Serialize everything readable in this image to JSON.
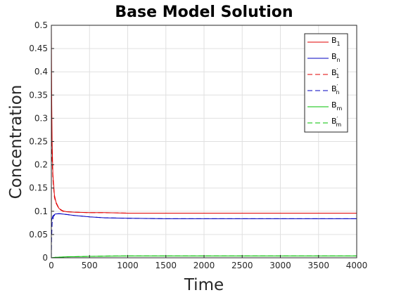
{
  "chart_data": {
    "type": "line",
    "title": "Base Model Solution",
    "xlabel": "Time",
    "ylabel": "Concentration",
    "xlim": [
      0,
      4000
    ],
    "ylim": [
      0,
      0.5
    ],
    "xticks": [
      0,
      500,
      1000,
      1500,
      2000,
      2500,
      3000,
      3500,
      4000
    ],
    "yticks": [
      0,
      0.05,
      0.1,
      0.15,
      0.2,
      0.25,
      0.3,
      0.35,
      0.4,
      0.45,
      0.5
    ],
    "xtick_labels": [
      "0",
      "500",
      "1000",
      "1500",
      "2000",
      "2500",
      "3000",
      "3500",
      "4000"
    ],
    "ytick_labels": [
      "0",
      "0.05",
      "0.1",
      "0.15",
      "0.2",
      "0.25",
      "0.3",
      "0.35",
      "0.4",
      "0.45",
      "0.5"
    ],
    "grid": true,
    "legend_position": "top-right",
    "series": [
      {
        "name": "B",
        "sub": "1",
        "prime": false,
        "color": "#e00000",
        "dash": "solid",
        "x": [
          0,
          2,
          5,
          10,
          20,
          40,
          60,
          100,
          150,
          200,
          300,
          500,
          700,
          1000,
          1500,
          2000,
          3000,
          4000
        ],
        "y": [
          0.5,
          0.42,
          0.33,
          0.25,
          0.18,
          0.135,
          0.12,
          0.106,
          0.101,
          0.099,
          0.098,
          0.097,
          0.097,
          0.096,
          0.096,
          0.096,
          0.096,
          0.096
        ]
      },
      {
        "name": "B",
        "sub": "n",
        "prime": false,
        "color": "#0000c0",
        "dash": "solid",
        "x": [
          0,
          5,
          20,
          50,
          100,
          150,
          200,
          300,
          500,
          700,
          1000,
          1500,
          2000,
          3000,
          4000
        ],
        "y": [
          0.075,
          0.082,
          0.09,
          0.094,
          0.095,
          0.094,
          0.093,
          0.091,
          0.088,
          0.086,
          0.085,
          0.084,
          0.084,
          0.084,
          0.084
        ]
      },
      {
        "name": "B",
        "sub": "1",
        "prime": true,
        "color": "#e00000",
        "dash": "dashed",
        "x": [
          0,
          2,
          5,
          10,
          20,
          40,
          60,
          100,
          150,
          200,
          300,
          500,
          700,
          1000,
          1500,
          2000,
          3000,
          4000
        ],
        "y": [
          0.3,
          0.28,
          0.25,
          0.21,
          0.17,
          0.13,
          0.118,
          0.105,
          0.1,
          0.099,
          0.098,
          0.097,
          0.097,
          0.096,
          0.096,
          0.096,
          0.096,
          0.096
        ]
      },
      {
        "name": "B",
        "sub": "n",
        "prime": true,
        "color": "#0000c0",
        "dash": "dashed",
        "x": [
          0,
          3,
          10,
          30,
          60,
          100,
          150,
          200,
          300,
          500,
          700,
          1000,
          1500,
          2000,
          2300,
          3000,
          4000
        ],
        "y": [
          0.0,
          0.04,
          0.075,
          0.09,
          0.094,
          0.095,
          0.094,
          0.093,
          0.091,
          0.088,
          0.086,
          0.085,
          0.084,
          0.084,
          0.084,
          0.084,
          0.084
        ]
      },
      {
        "name": "B",
        "sub": "m",
        "prime": false,
        "color": "#00c000",
        "dash": "solid",
        "x": [
          0,
          50,
          200,
          500,
          1000,
          2000,
          4000
        ],
        "y": [
          0.0,
          0.001,
          0.002,
          0.003,
          0.004,
          0.004,
          0.004
        ]
      },
      {
        "name": "B",
        "sub": "m",
        "prime": true,
        "color": "#00c000",
        "dash": "dashed",
        "x": [
          0,
          50,
          200,
          500,
          800,
          1000,
          2000,
          4000
        ],
        "y": [
          0.0,
          0.001,
          0.002,
          0.003,
          0.004,
          0.004,
          0.004,
          0.004
        ]
      }
    ]
  }
}
